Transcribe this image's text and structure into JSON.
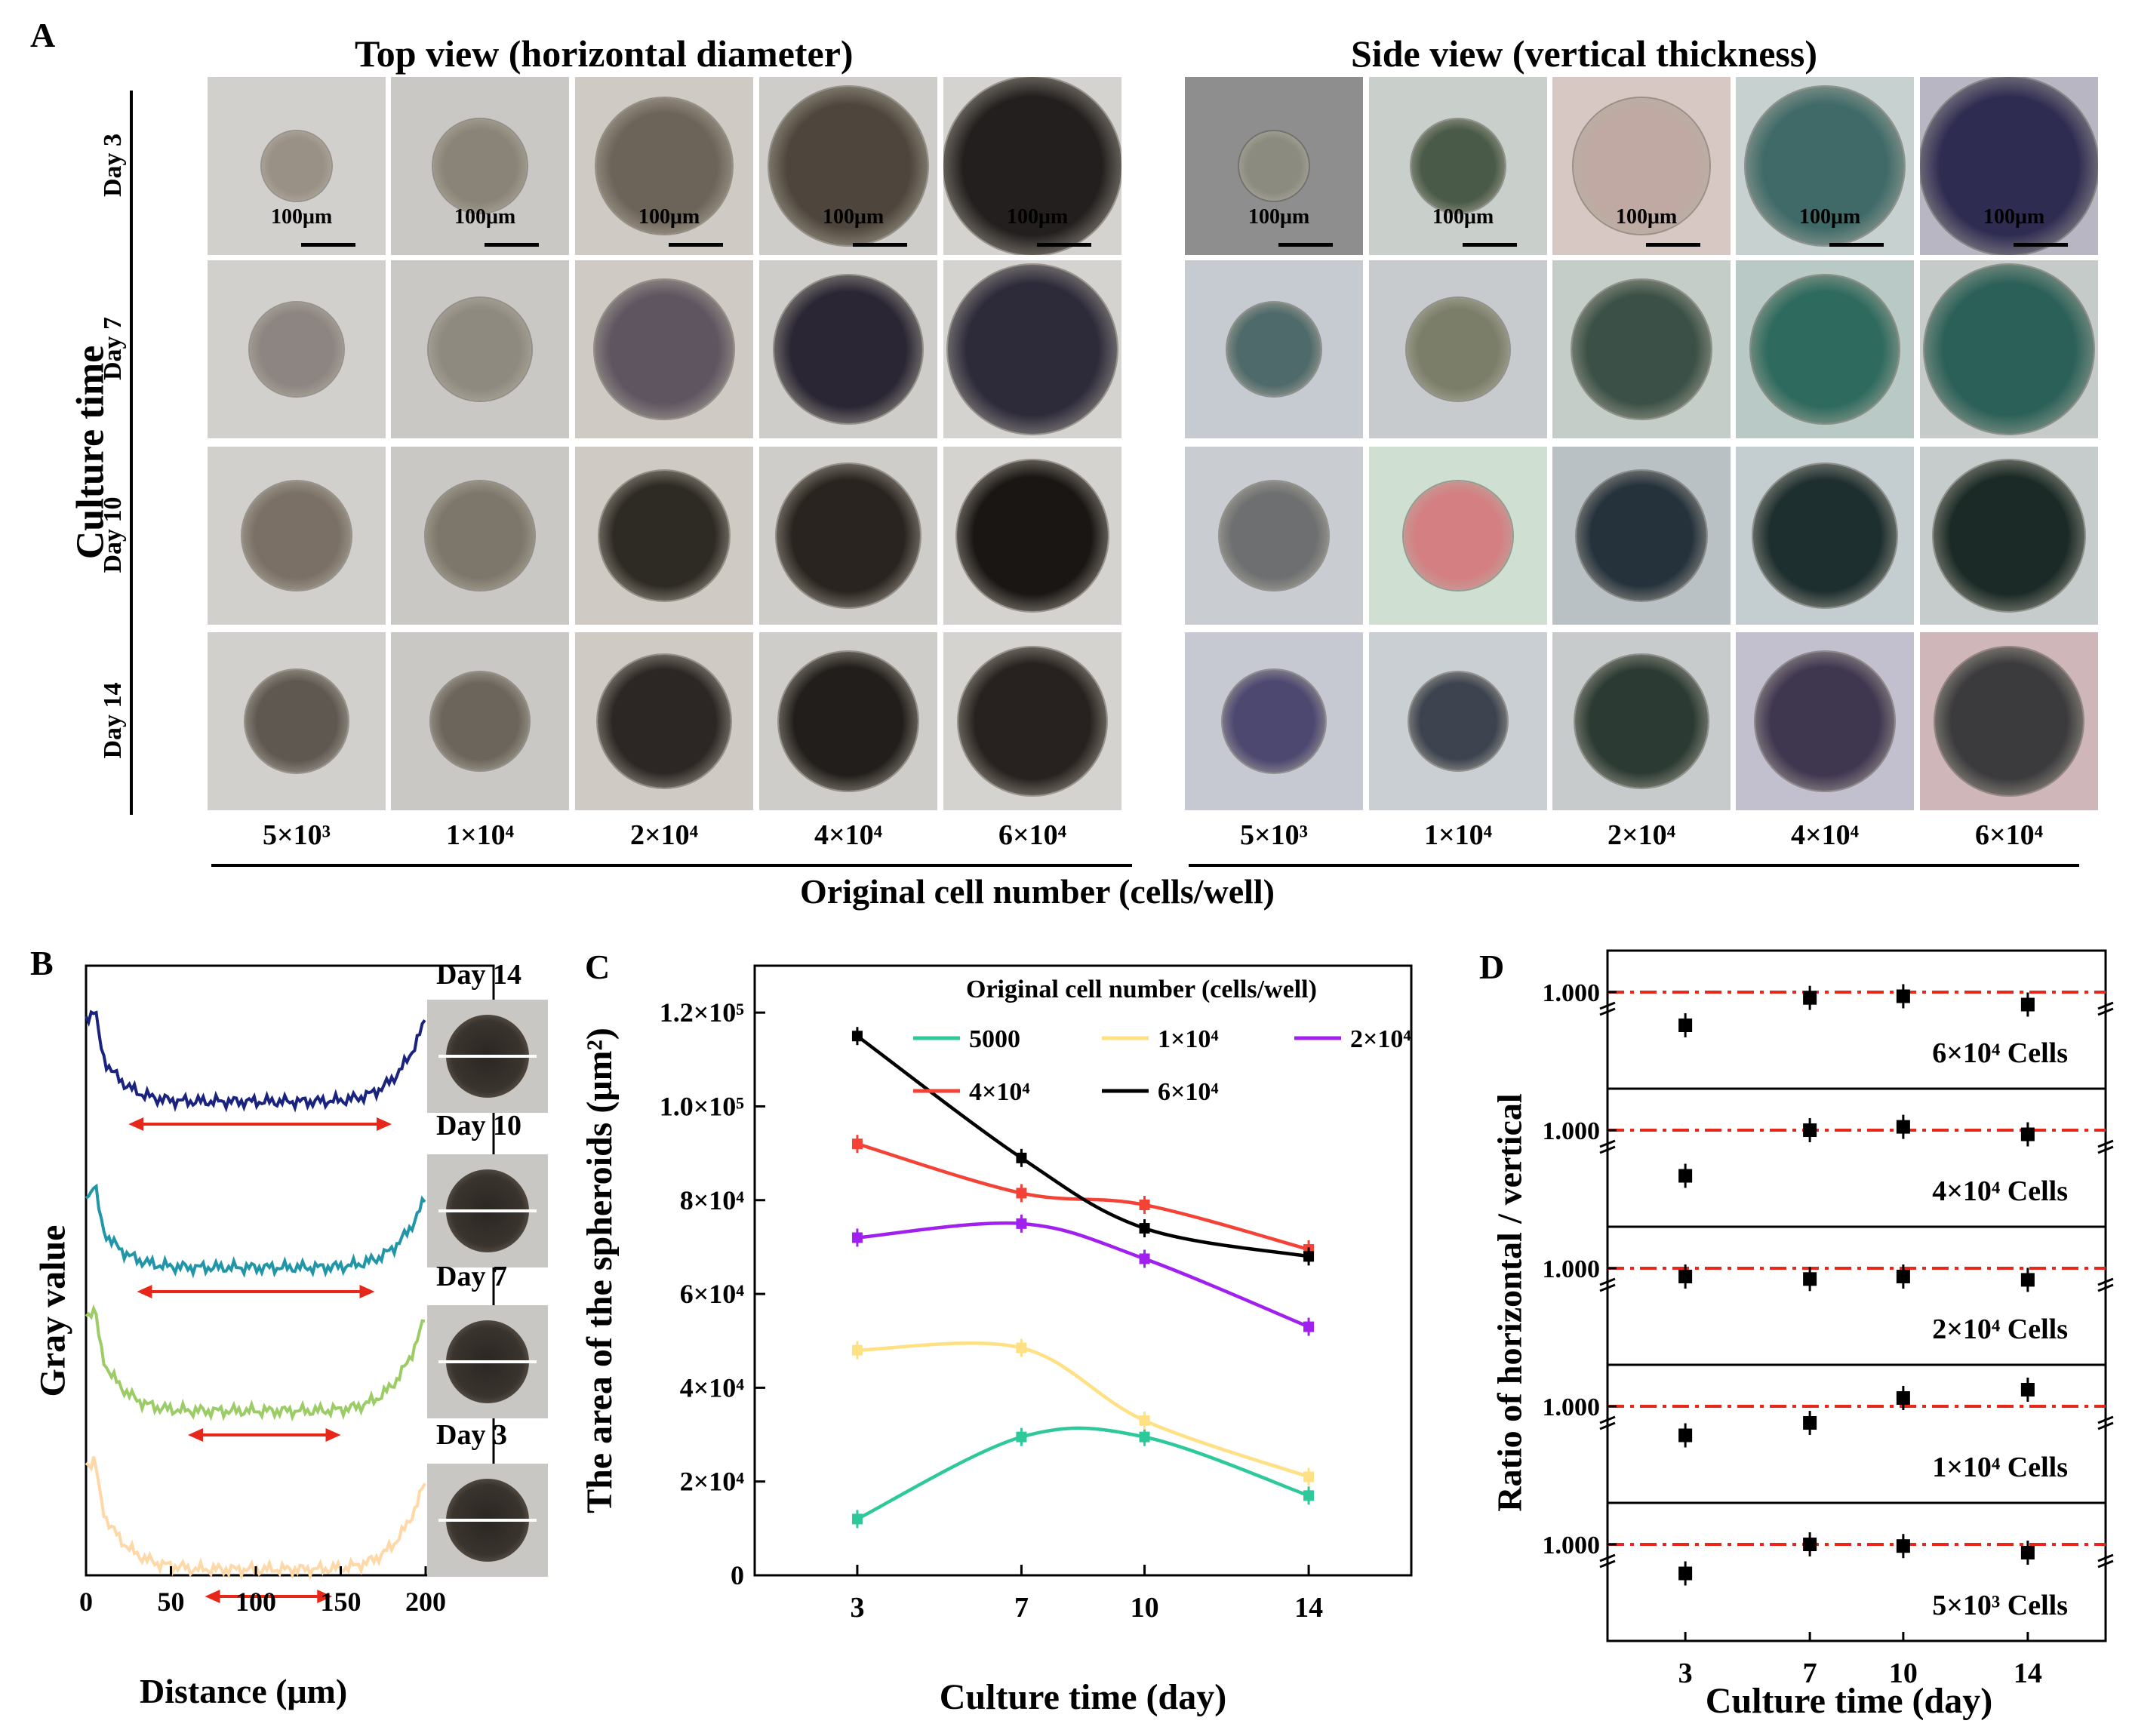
{
  "panel_a": {
    "label": "A",
    "top_view_title": "Top view (horizontal diameter)",
    "side_view_title": "Side view (vertical thickness)",
    "culture_time_label": "Culture time",
    "rows": [
      "Day 3",
      "Day 7",
      "Day 10",
      "Day 14"
    ],
    "columns": [
      "5×10³",
      "1×10⁴",
      "2×10⁴",
      "4×10⁴",
      "6×10⁴"
    ],
    "scale_bar": "100μm",
    "xlabel": "Original cell number (cells/well)"
  },
  "panel_b": {
    "label": "B",
    "ylabel": "Gray value",
    "xlabel": "Distance (μm)",
    "xticks": [
      "0",
      "50",
      "100",
      "150",
      "200"
    ],
    "days": [
      "Day 14",
      "Day 10",
      "Day 7",
      "Day 3"
    ],
    "colors": [
      "#1a237e",
      "#2196a8",
      "#9ccc65",
      "#ffd8a8"
    ],
    "arrow_color": "#e8271b"
  },
  "panel_c": {
    "label": "C",
    "legend_title": "Original cell number (cells/well)"
  },
  "panel_d": {
    "label": "D",
    "ylabel": "Ratio of horizontal / vertical",
    "xlabel": "Culture time (day)",
    "xticks": [
      "3",
      "7",
      "10",
      "14"
    ],
    "subplots": [
      {
        "label": "6×10⁴ Cells",
        "ref": "1.000",
        "values": [
          0.6,
          0.93,
          0.95,
          0.85
        ]
      },
      {
        "label": "4×10⁴ Cells",
        "ref": "1.000",
        "values": [
          0.45,
          1.0,
          1.04,
          0.95
        ]
      },
      {
        "label": "2×10⁴ Cells",
        "ref": "1.000",
        "values": [
          0.9,
          0.87,
          0.9,
          0.86
        ]
      },
      {
        "label": "1×10⁴ Cells",
        "ref": "1.000",
        "values": [
          0.65,
          0.8,
          1.1,
          1.2
        ]
      },
      {
        "label": "5×10³ Cells",
        "ref": "1.000",
        "values": [
          0.65,
          1.0,
          0.98,
          0.9
        ]
      }
    ],
    "ref_color": "#e8271b"
  },
  "chart_data": {
    "type": "line",
    "title": "",
    "xlabel": "Culture time (day)",
    "ylabel": "The area of the spheroids (μm²)",
    "x": [
      3,
      7,
      10,
      14
    ],
    "xticks": [
      "3",
      "7",
      "10",
      "14"
    ],
    "ylim": [
      0,
      130000
    ],
    "yticks": [
      {
        "value": 0,
        "label": "0"
      },
      {
        "value": 20000,
        "label": "2×10⁴"
      },
      {
        "value": 40000,
        "label": "4×10⁴"
      },
      {
        "value": 60000,
        "label": "6×10⁴"
      },
      {
        "value": 80000,
        "label": "8×10⁴"
      },
      {
        "value": 100000,
        "label": "1.0×10⁵"
      },
      {
        "value": 120000,
        "label": "1.2×10⁵"
      }
    ],
    "legend_title": "Original cell number (cells/well)",
    "series": [
      {
        "name": "5000",
        "color": "#2ec99a",
        "values": [
          12000,
          29500,
          29500,
          17000
        ]
      },
      {
        "name": "1×10⁴",
        "color": "#ffe082",
        "values": [
          48000,
          48500,
          33000,
          21000
        ]
      },
      {
        "name": "2×10⁴",
        "color": "#a020f0",
        "values": [
          72000,
          75000,
          67500,
          53000
        ]
      },
      {
        "name": "4×10⁴",
        "color": "#f44336",
        "values": [
          92000,
          81500,
          79000,
          69500
        ]
      },
      {
        "name": "6×10⁴",
        "color": "#000000",
        "values": [
          115000,
          89000,
          74000,
          68000
        ]
      }
    ]
  }
}
